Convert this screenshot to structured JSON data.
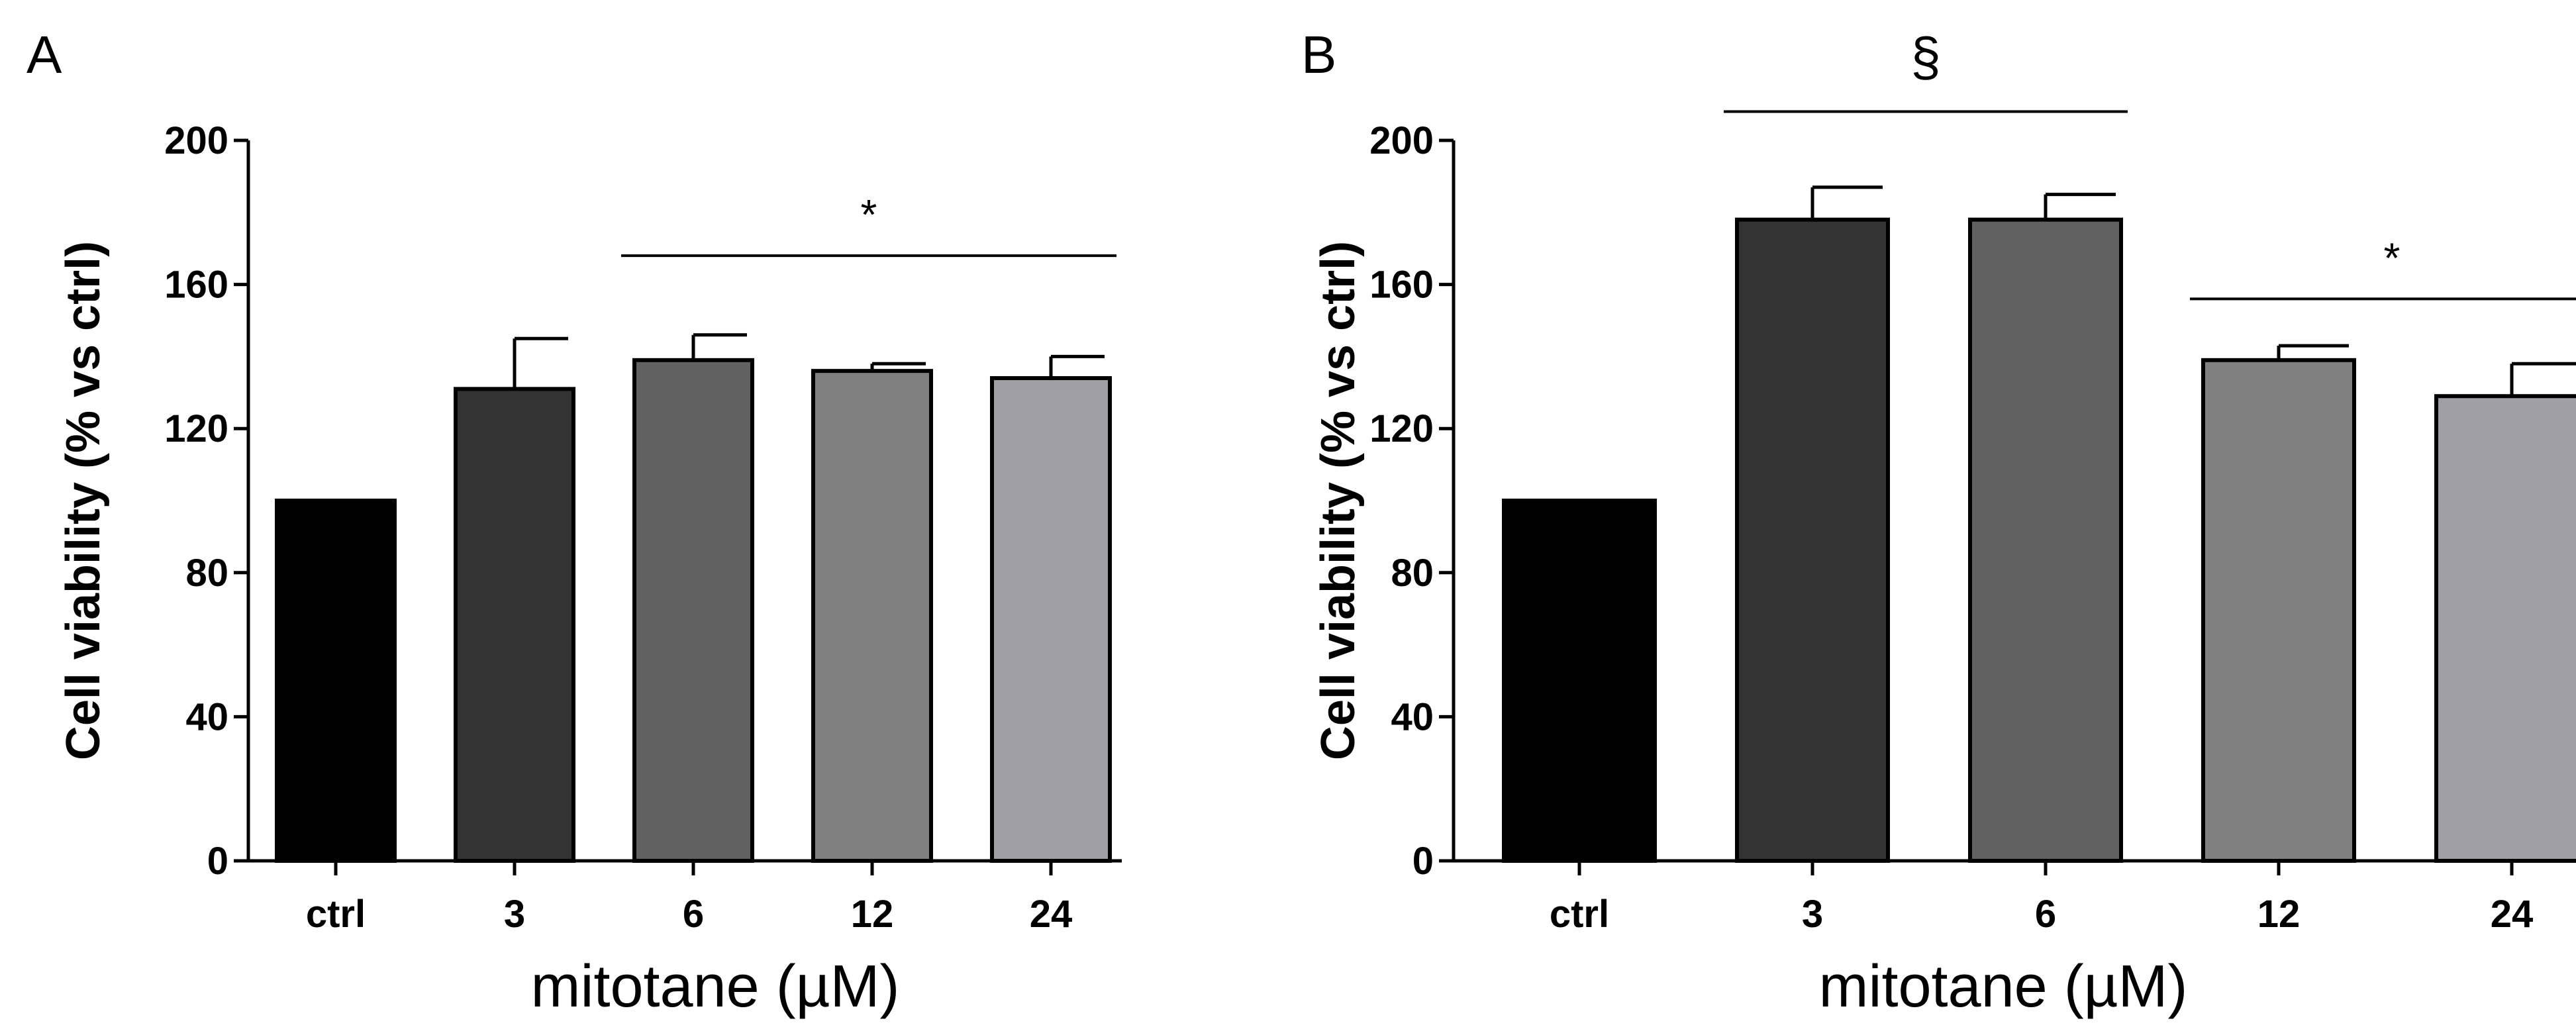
{
  "chart_data": [
    {
      "panel": "A",
      "type": "bar",
      "categories": [
        "ctrl",
        "3",
        "6",
        "12",
        "24"
      ],
      "values": [
        100,
        131,
        139,
        136,
        134
      ],
      "errors": [
        0,
        14,
        7,
        2,
        6
      ],
      "colors": [
        "#000000",
        "#333333",
        "#616161",
        "#808080",
        "#a0a0a4"
      ],
      "ylabel": "Cell viability (% vs ctrl)",
      "xlabel": "mitotane (µM)",
      "ylim": [
        0,
        200
      ],
      "yticks": [
        0,
        40,
        80,
        120,
        160,
        200
      ],
      "annotations": [
        {
          "symbol": "*",
          "from_category": 2,
          "to_category": 4,
          "y": 168
        }
      ]
    },
    {
      "panel": "B",
      "type": "bar",
      "categories": [
        "ctrl",
        "3",
        "6",
        "12",
        "24"
      ],
      "values": [
        100,
        178,
        178,
        139,
        129
      ],
      "errors": [
        0,
        9,
        7,
        4,
        9
      ],
      "colors": [
        "#000000",
        "#333333",
        "#616161",
        "#808080",
        "#a0a0a4"
      ],
      "ylabel": "Cell viability (% vs ctrl)",
      "xlabel": "mitotane (µM)",
      "ylim": [
        0,
        200
      ],
      "yticks": [
        0,
        40,
        80,
        120,
        160,
        200
      ],
      "annotations": [
        {
          "symbol": "§",
          "from_category": 1,
          "to_category": 2,
          "y": 208
        },
        {
          "symbol": "*",
          "from_category": 3,
          "to_category": 4,
          "y": 156
        }
      ]
    }
  ]
}
